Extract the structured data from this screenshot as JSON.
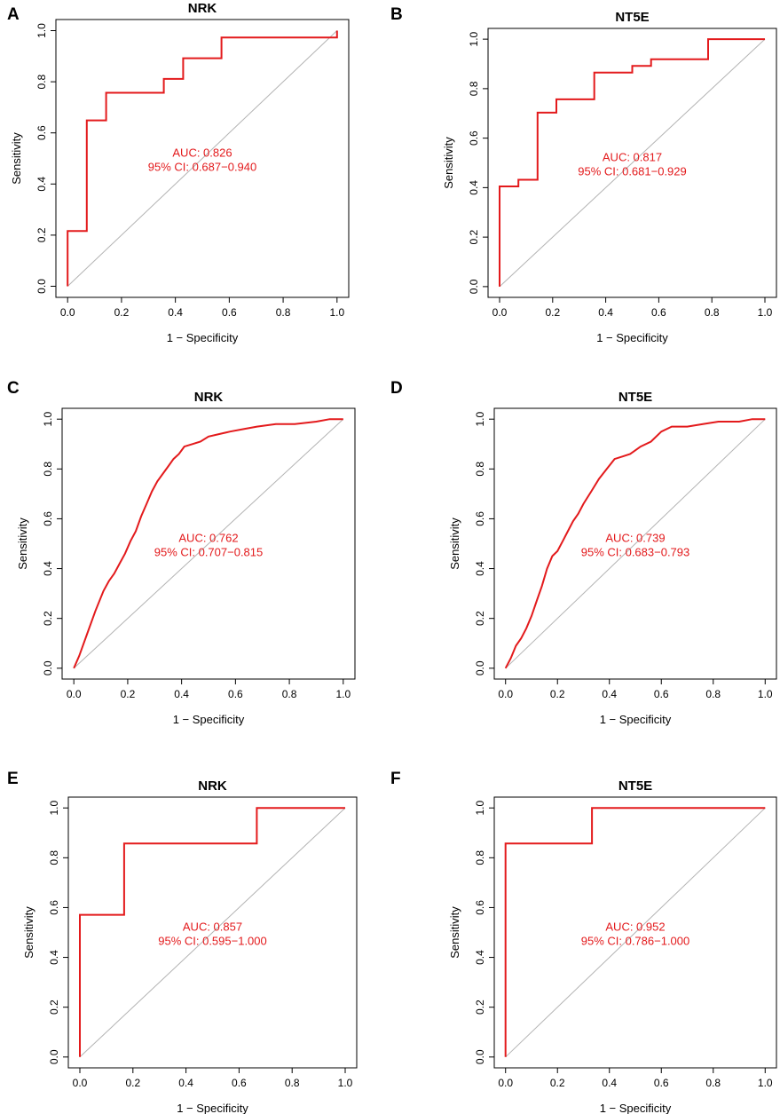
{
  "colors": {
    "curve": "#e31a1c",
    "diagonal": "#b3b3b3",
    "axis": "#000000"
  },
  "chart_data": [
    {
      "panel": "A",
      "type": "line",
      "title": "NRK",
      "xlabel": "1 − Specificity",
      "ylabel": "Sensitivity",
      "xlim": [
        0,
        1
      ],
      "ylim": [
        0,
        1
      ],
      "xticks": [
        "0.0",
        "0.2",
        "0.4",
        "0.6",
        "0.8",
        "1.0"
      ],
      "yticks": [
        "0.0",
        "0.2",
        "0.4",
        "0.6",
        "0.8",
        "1.0"
      ],
      "auc_text": "AUC: 0.826",
      "ci_text": "95% CI: 0.687−0.940",
      "annot_at": [
        0.5,
        0.5
      ],
      "series": [
        {
          "name": "ROC",
          "x": [
            0,
            0,
            0.071,
            0.071,
            0.143,
            0.143,
            0.357,
            0.357,
            0.429,
            0.429,
            0.571,
            0.571,
            1.0,
            1.0
          ],
          "y": [
            0,
            0.216,
            0.216,
            0.649,
            0.649,
            0.757,
            0.757,
            0.811,
            0.811,
            0.892,
            0.892,
            0.973,
            0.973,
            1.0
          ]
        }
      ]
    },
    {
      "panel": "B",
      "type": "line",
      "title": "NT5E",
      "xlabel": "1 − Specificity",
      "ylabel": "Sensitivity",
      "xlim": [
        0,
        1
      ],
      "ylim": [
        0,
        1
      ],
      "xticks": [
        "0.0",
        "0.2",
        "0.4",
        "0.6",
        "0.8",
        "1.0"
      ],
      "yticks": [
        "0.0",
        "0.2",
        "0.4",
        "0.6",
        "0.8",
        "1.0"
      ],
      "auc_text": "AUC: 0.817",
      "ci_text": "95% CI: 0.681−0.929",
      "annot_at": [
        0.5,
        0.5
      ],
      "series": [
        {
          "name": "ROC",
          "x": [
            0,
            0,
            0.071,
            0.071,
            0.143,
            0.143,
            0.214,
            0.214,
            0.357,
            0.357,
            0.5,
            0.5,
            0.571,
            0.571,
            0.786,
            0.786,
            1.0
          ],
          "y": [
            0,
            0.405,
            0.405,
            0.432,
            0.432,
            0.703,
            0.703,
            0.757,
            0.757,
            0.865,
            0.865,
            0.892,
            0.892,
            0.919,
            0.919,
            1.0,
            1.0
          ]
        }
      ]
    },
    {
      "panel": "C",
      "type": "line",
      "title": "NRK",
      "xlabel": "1 − Specificity",
      "ylabel": "Sensitivity",
      "xlim": [
        0,
        1
      ],
      "ylim": [
        0,
        1
      ],
      "xticks": [
        "0.0",
        "0.2",
        "0.4",
        "0.6",
        "0.8",
        "1.0"
      ],
      "yticks": [
        "0.0",
        "0.2",
        "0.4",
        "0.6",
        "0.8",
        "1.0"
      ],
      "auc_text": "AUC: 0.762",
      "ci_text": "95% CI: 0.707−0.815",
      "annot_at": [
        0.5,
        0.5
      ],
      "series": [
        {
          "name": "ROC",
          "x": [
            0,
            0.02,
            0.05,
            0.08,
            0.11,
            0.13,
            0.15,
            0.17,
            0.19,
            0.21,
            0.23,
            0.25,
            0.27,
            0.29,
            0.31,
            0.33,
            0.35,
            0.37,
            0.39,
            0.41,
            0.44,
            0.47,
            0.5,
            0.54,
            0.58,
            0.63,
            0.68,
            0.75,
            0.82,
            0.9,
            0.95,
            1.0
          ],
          "y": [
            0,
            0.05,
            0.14,
            0.23,
            0.31,
            0.35,
            0.38,
            0.42,
            0.46,
            0.51,
            0.55,
            0.61,
            0.66,
            0.71,
            0.75,
            0.78,
            0.81,
            0.84,
            0.86,
            0.89,
            0.9,
            0.91,
            0.93,
            0.94,
            0.95,
            0.96,
            0.97,
            0.98,
            0.98,
            0.99,
            1.0,
            1.0
          ]
        }
      ]
    },
    {
      "panel": "D",
      "type": "line",
      "title": "NT5E",
      "xlabel": "1 − Specificity",
      "ylabel": "Sensitivity",
      "xlim": [
        0,
        1
      ],
      "ylim": [
        0,
        1
      ],
      "xticks": [
        "0.0",
        "0.2",
        "0.4",
        "0.6",
        "0.8",
        "1.0"
      ],
      "yticks": [
        "0.0",
        "0.2",
        "0.4",
        "0.6",
        "0.8",
        "1.0"
      ],
      "auc_text": "AUC: 0.739",
      "ci_text": "95% CI: 0.683−0.793",
      "annot_at": [
        0.5,
        0.5
      ],
      "series": [
        {
          "name": "ROC",
          "x": [
            0,
            0.02,
            0.04,
            0.06,
            0.08,
            0.1,
            0.12,
            0.14,
            0.16,
            0.18,
            0.2,
            0.22,
            0.24,
            0.26,
            0.28,
            0.3,
            0.33,
            0.36,
            0.39,
            0.42,
            0.45,
            0.48,
            0.52,
            0.56,
            0.6,
            0.64,
            0.7,
            0.76,
            0.82,
            0.9,
            0.95,
            1.0
          ],
          "y": [
            0,
            0.04,
            0.09,
            0.12,
            0.16,
            0.21,
            0.27,
            0.33,
            0.4,
            0.45,
            0.47,
            0.51,
            0.55,
            0.59,
            0.62,
            0.66,
            0.71,
            0.76,
            0.8,
            0.84,
            0.85,
            0.86,
            0.89,
            0.91,
            0.95,
            0.97,
            0.97,
            0.98,
            0.99,
            0.99,
            1.0,
            1.0
          ]
        }
      ]
    },
    {
      "panel": "E",
      "type": "line",
      "title": "NRK",
      "xlabel": "1 − Specificity",
      "ylabel": "Sensitivity",
      "xlim": [
        0,
        1
      ],
      "ylim": [
        0,
        1
      ],
      "xticks": [
        "0.0",
        "0.2",
        "0.4",
        "0.6",
        "0.8",
        "1.0"
      ],
      "yticks": [
        "0.0",
        "0.2",
        "0.4",
        "0.6",
        "0.8",
        "1.0"
      ],
      "auc_text": "AUC: 0.857",
      "ci_text": "95% CI: 0.595−1.000",
      "annot_at": [
        0.5,
        0.5
      ],
      "series": [
        {
          "name": "ROC",
          "x": [
            0,
            0,
            0.167,
            0.167,
            0.667,
            0.667,
            1.0
          ],
          "y": [
            0,
            0.571,
            0.571,
            0.857,
            0.857,
            1.0,
            1.0
          ]
        }
      ]
    },
    {
      "panel": "F",
      "type": "line",
      "title": "NT5E",
      "xlabel": "1 − Specificity",
      "ylabel": "Sensitivity",
      "xlim": [
        0,
        1
      ],
      "ylim": [
        0,
        1
      ],
      "xticks": [
        "0.0",
        "0.2",
        "0.4",
        "0.6",
        "0.8",
        "1.0"
      ],
      "yticks": [
        "0.0",
        "0.2",
        "0.4",
        "0.6",
        "0.8",
        "1.0"
      ],
      "auc_text": "AUC: 0.952",
      "ci_text": "95% CI: 0.786−1.000",
      "annot_at": [
        0.5,
        0.5
      ],
      "series": [
        {
          "name": "ROC",
          "x": [
            0,
            0,
            0.333,
            0.333,
            1.0
          ],
          "y": [
            0,
            0.857,
            0.857,
            1.0,
            1.0
          ]
        }
      ]
    }
  ]
}
